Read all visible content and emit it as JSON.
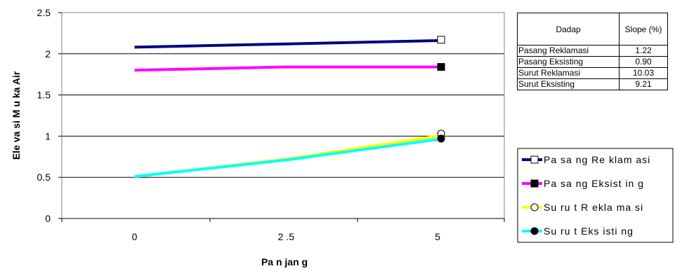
{
  "chart_data": {
    "type": "line",
    "title": "",
    "xlabel": "Pa n jan g",
    "ylabel": "Ele va si M u ka Air",
    "x": [
      0,
      2.5,
      5
    ],
    "xticks": [
      "0",
      "2 .5",
      "5"
    ],
    "yticks": [
      "0",
      "0.5",
      "1",
      "1.5",
      "2",
      "2.5"
    ],
    "xlim": [
      -1.2,
      6.1
    ],
    "ylim": [
      0,
      2.5
    ],
    "grid": "horizontal",
    "legend_position": "right",
    "series": [
      {
        "name": "Pa sa ng Re klam asi",
        "values": [
          2.08,
          2.12,
          2.16
        ],
        "end_value": 2.17,
        "color": "#000080",
        "marker": "open-square"
      },
      {
        "name": "Pa sa ng Eksist in g",
        "values": [
          1.8,
          1.84,
          1.84
        ],
        "end_value": 1.84,
        "color": "#ff00ff",
        "marker": "filled-square"
      },
      {
        "name": "Su ru t R ekla ma si",
        "values": [
          0.51,
          0.72,
          1.0
        ],
        "end_value": 1.03,
        "color": "#ffff00",
        "marker": "open-circle"
      },
      {
        "name": "Su ru t Eks isti ng",
        "values": [
          0.51,
          0.71,
          0.96
        ],
        "end_value": 0.97,
        "color": "#00ffff",
        "marker": "filled-circle"
      }
    ]
  },
  "slope_table": {
    "headers": [
      "Dadap",
      "Slope (%)"
    ],
    "rows": [
      {
        "name": "Pasang Reklamasi",
        "slope": "1.22"
      },
      {
        "name": "Pasang Eksisting",
        "slope": "0.90"
      },
      {
        "name": "Surut Reklamasi",
        "slope": "10.03"
      },
      {
        "name": "Surut Eksisting",
        "slope": "9.21"
      }
    ]
  }
}
